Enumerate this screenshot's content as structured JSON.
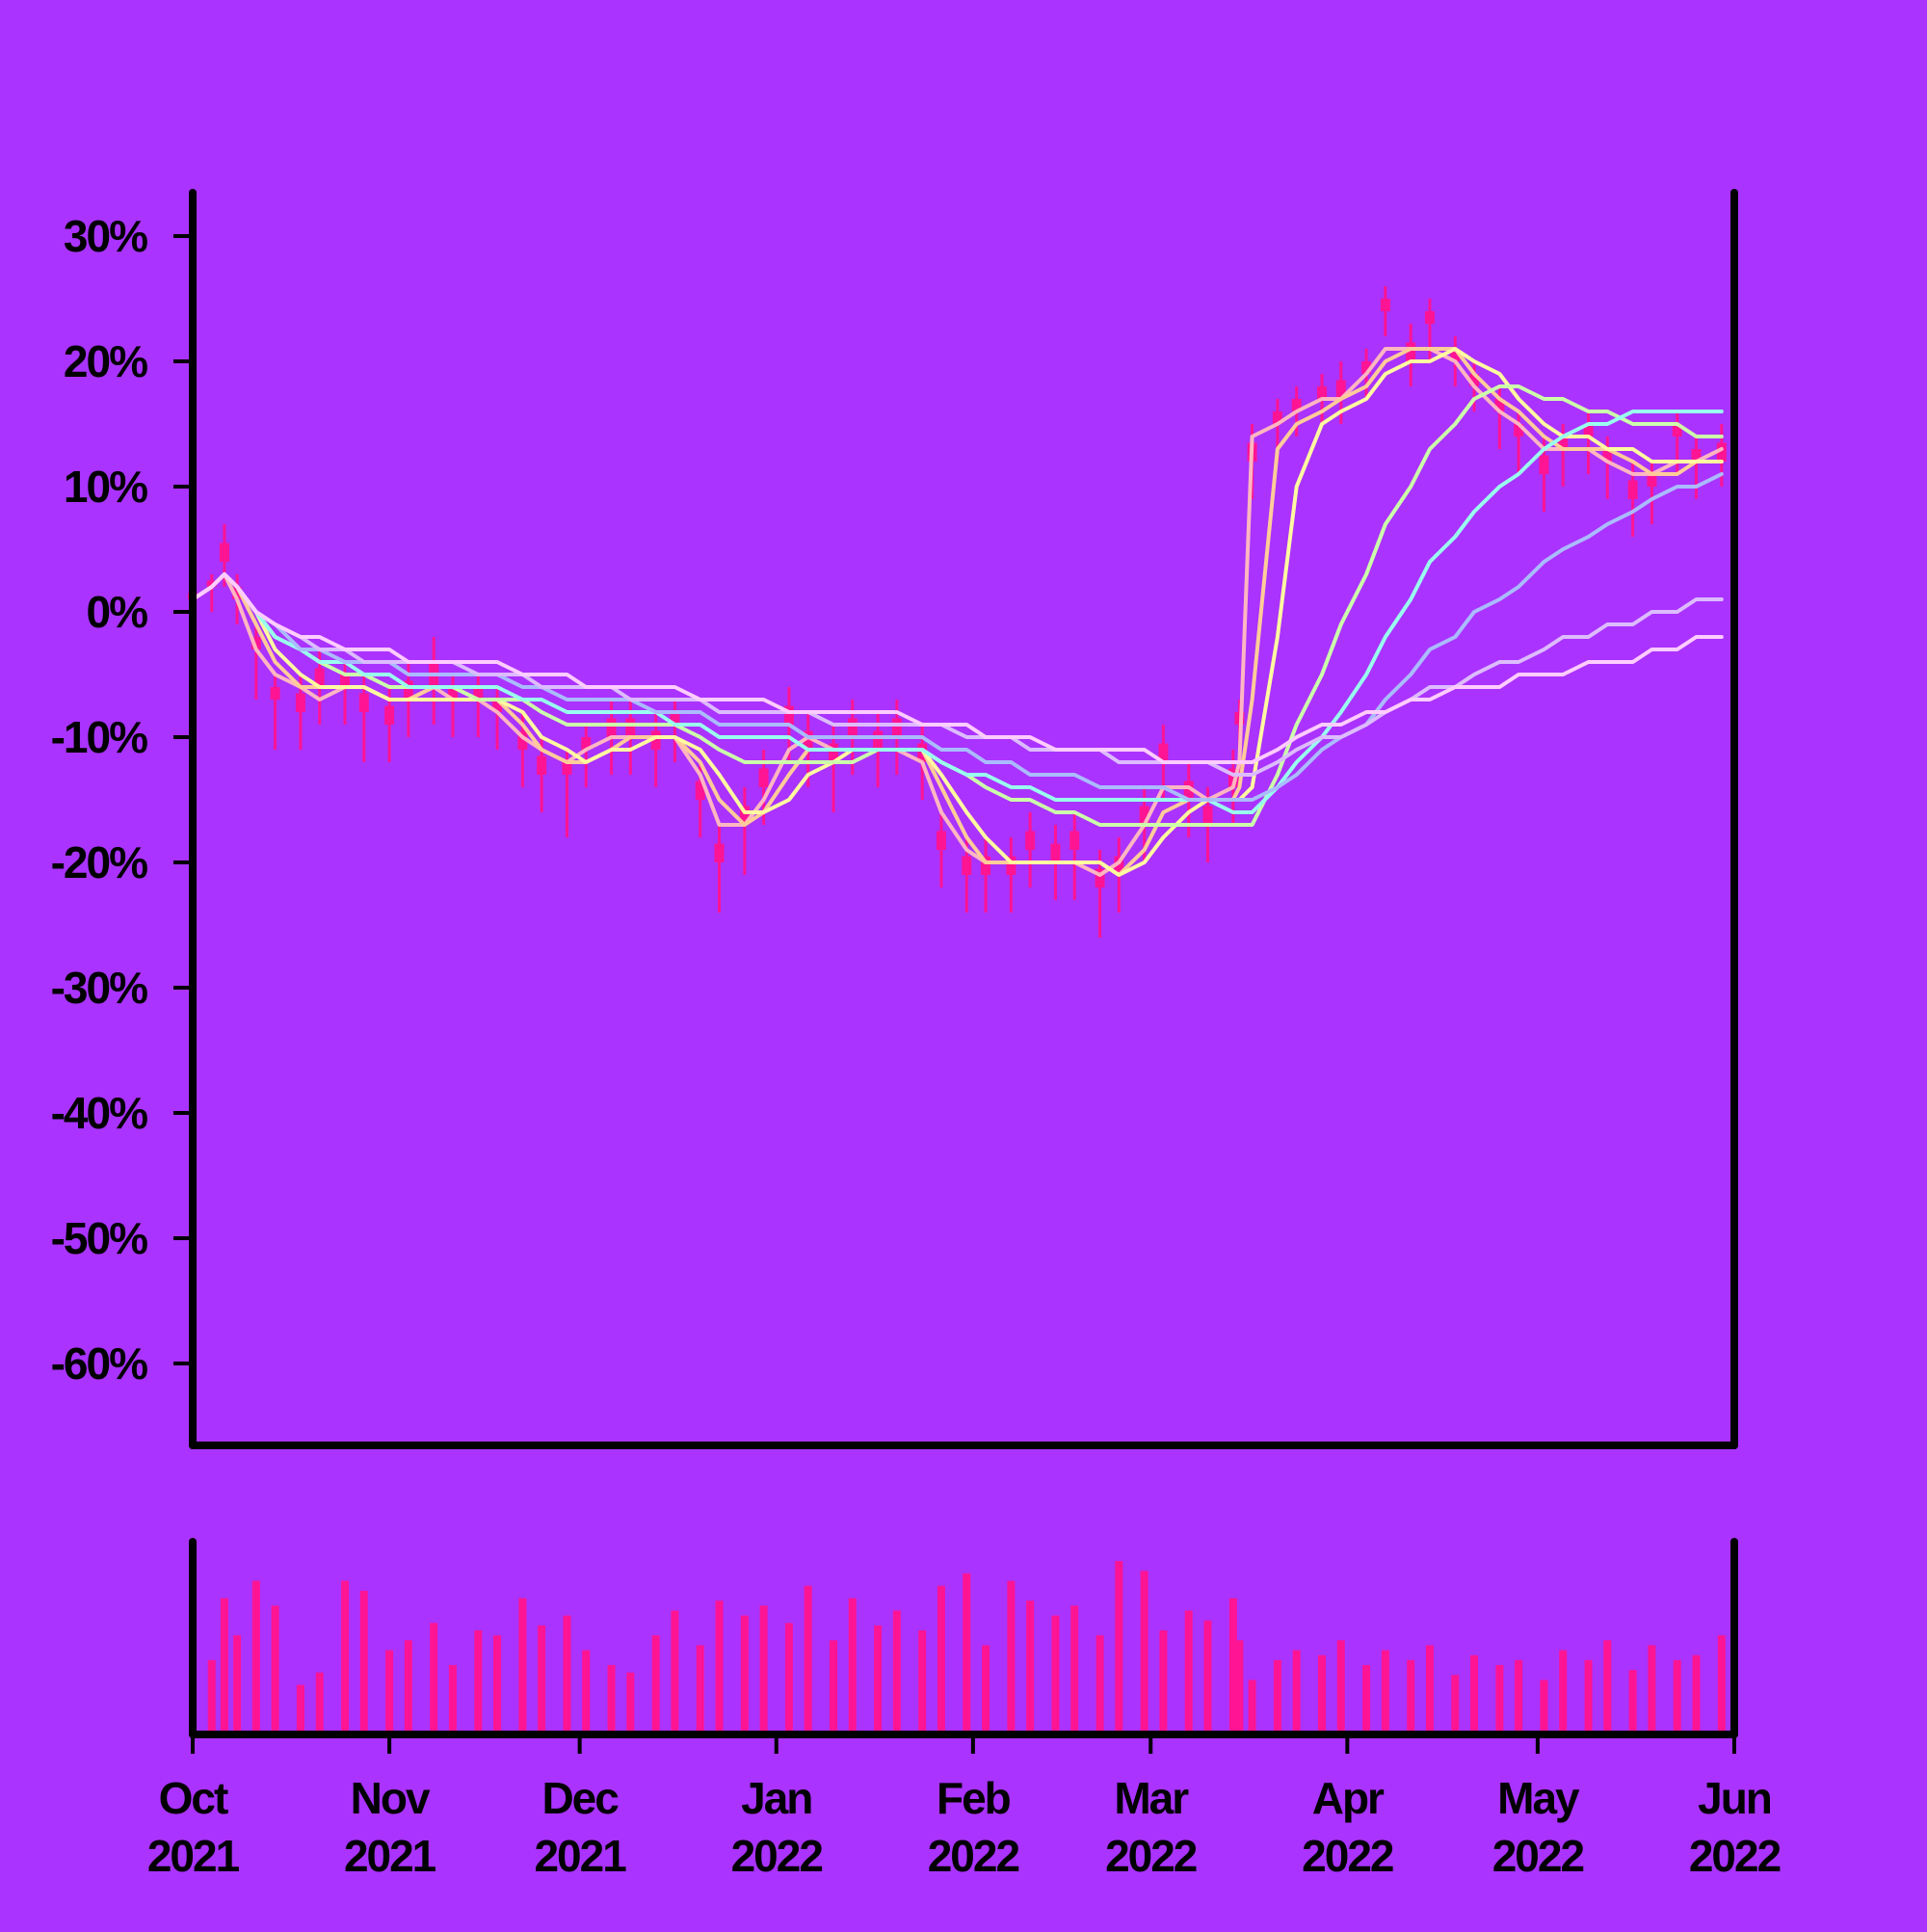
{
  "chart_data": {
    "type": "line",
    "background": "#aa33ff",
    "price_color": "#ff1493",
    "volume_color": "#ff1493",
    "axis_color": "#000000",
    "x_range": [
      "2021-10-01",
      "2022-06-01"
    ],
    "x_ticks": [
      {
        "date": "2021-10-01",
        "month": "Oct",
        "year": "2021"
      },
      {
        "date": "2021-11-01",
        "month": "Nov",
        "year": "2021"
      },
      {
        "date": "2021-12-01",
        "month": "Dec",
        "year": "2021"
      },
      {
        "date": "2022-01-01",
        "month": "Jan",
        "year": "2022"
      },
      {
        "date": "2022-02-01",
        "month": "Feb",
        "year": "2022"
      },
      {
        "date": "2022-03-01",
        "month": "Mar",
        "year": "2022"
      },
      {
        "date": "2022-04-01",
        "month": "Apr",
        "year": "2022"
      },
      {
        "date": "2022-05-01",
        "month": "May",
        "year": "2022"
      },
      {
        "date": "2022-06-01",
        "month": "Jun",
        "year": "2022"
      }
    ],
    "y_range": [
      -66,
      33
    ],
    "y_unit": "%",
    "y_ticks": [
      30,
      20,
      10,
      0,
      -10,
      -20,
      -30,
      -40,
      -50,
      -60
    ],
    "y_tick_labels": [
      "30%",
      "20%",
      "10%",
      "0%",
      "-10%",
      "-20%",
      "-30%",
      "-40%",
      "-50%",
      "-60%"
    ],
    "grid": false,
    "price_series": {
      "dates": [
        "2021-10-01",
        "2021-10-04",
        "2021-10-06",
        "2021-10-08",
        "2021-10-11",
        "2021-10-14",
        "2021-10-18",
        "2021-10-21",
        "2021-10-25",
        "2021-10-28",
        "2021-11-01",
        "2021-11-04",
        "2021-11-08",
        "2021-11-11",
        "2021-11-15",
        "2021-11-18",
        "2021-11-22",
        "2021-11-25",
        "2021-11-29",
        "2021-12-02",
        "2021-12-06",
        "2021-12-09",
        "2021-12-13",
        "2021-12-16",
        "2021-12-20",
        "2021-12-23",
        "2021-12-27",
        "2021-12-30",
        "2022-01-03",
        "2022-01-06",
        "2022-01-10",
        "2022-01-13",
        "2022-01-17",
        "2022-01-20",
        "2022-01-24",
        "2022-01-27",
        "2022-01-31",
        "2022-02-03",
        "2022-02-07",
        "2022-02-10",
        "2022-02-14",
        "2022-02-17",
        "2022-02-21",
        "2022-02-24",
        "2022-02-28",
        "2022-03-03",
        "2022-03-07",
        "2022-03-10",
        "2022-03-14",
        "2022-03-15",
        "2022-03-17",
        "2022-03-21",
        "2022-03-24",
        "2022-03-28",
        "2022-03-31",
        "2022-04-04",
        "2022-04-07",
        "2022-04-11",
        "2022-04-14",
        "2022-04-18",
        "2022-04-21",
        "2022-04-25",
        "2022-04-28",
        "2022-05-02",
        "2022-05-05",
        "2022-05-09",
        "2022-05-12",
        "2022-05-16",
        "2022-05-19",
        "2022-05-23",
        "2022-05-26",
        "2022-05-30"
      ],
      "values": [
        1,
        2,
        4,
        1,
        -3,
        -7,
        -8,
        -6,
        -6,
        -8,
        -9,
        -7,
        -6,
        -7,
        -7,
        -8,
        -11,
        -13,
        -13,
        -11,
        -10,
        -10,
        -11,
        -9,
        -15,
        -20,
        -17,
        -14,
        -9,
        -11,
        -12,
        -10,
        -11,
        -10,
        -12,
        -19,
        -21,
        -21,
        -21,
        -19,
        -20,
        -19,
        -22,
        -21,
        -17,
        -12,
        -15,
        -17,
        -14,
        -9,
        12,
        15,
        16,
        17,
        17,
        19,
        24,
        20,
        23,
        20,
        18,
        16,
        14,
        11,
        13,
        14,
        12,
        9,
        10,
        14,
        12,
        12
      ],
      "highs": [
        2,
        3,
        7,
        3,
        -1,
        -5,
        -5,
        -3,
        -4,
        -5,
        -6,
        -4,
        -2,
        -5,
        -5,
        -6,
        -8,
        -10,
        -11,
        -9,
        -7,
        -7,
        -8,
        -7,
        -12,
        -17,
        -14,
        -11,
        -6,
        -8,
        -9,
        -7,
        -8,
        -7,
        -9,
        -16,
        -18,
        -18,
        -18,
        -16,
        -17,
        -16,
        -19,
        -18,
        -14,
        -9,
        -12,
        -14,
        -11,
        -7,
        15,
        17,
        18,
        19,
        20,
        21,
        26,
        23,
        25,
        22,
        20,
        18,
        16,
        14,
        15,
        16,
        14,
        12,
        12,
        16,
        14,
        15
      ],
      "lows": [
        0,
        0,
        2,
        -1,
        -7,
        -11,
        -11,
        -9,
        -9,
        -12,
        -12,
        -10,
        -9,
        -10,
        -10,
        -11,
        -14,
        -16,
        -18,
        -14,
        -13,
        -13,
        -14,
        -12,
        -18,
        -24,
        -21,
        -17,
        -12,
        -14,
        -16,
        -13,
        -14,
        -13,
        -15,
        -22,
        -24,
        -24,
        -24,
        -22,
        -23,
        -23,
        -26,
        -24,
        -20,
        -15,
        -18,
        -20,
        -17,
        -14,
        9,
        12,
        14,
        15,
        15,
        17,
        22,
        18,
        20,
        18,
        16,
        13,
        11,
        8,
        10,
        11,
        9,
        6,
        7,
        11,
        9,
        10
      ]
    },
    "volume_series": [
      48,
      30,
      55,
      40,
      62,
      52,
      20,
      25,
      62,
      58,
      34,
      38,
      45,
      28,
      42,
      40,
      55,
      44,
      48,
      34,
      28,
      25,
      40,
      50,
      36,
      54,
      48,
      52,
      45,
      60,
      38,
      55,
      44,
      50,
      42,
      60,
      65,
      36,
      62,
      54,
      48,
      52,
      40,
      70,
      66,
      42,
      50,
      46,
      55,
      38,
      22,
      30,
      34,
      32,
      38,
      28,
      34,
      30,
      36,
      24,
      32,
      28,
      30,
      22,
      34,
      30,
      38,
      26,
      36,
      30,
      32,
      40
    ],
    "series": [
      {
        "values": [
          1,
          2,
          3,
          1,
          -3,
          -5,
          -6,
          -7,
          -6,
          -6,
          -7,
          -7,
          -6,
          -7,
          -7,
          -8,
          -10,
          -11,
          -12,
          -11,
          -10,
          -10,
          -10,
          -10,
          -13,
          -17,
          -17,
          -15,
          -11,
          -10,
          -11,
          -11,
          -11,
          -11,
          -12,
          -16,
          -19,
          -20,
          -20,
          -20,
          -20,
          -20,
          -21,
          -20,
          -17,
          -14,
          -14,
          -15,
          -14,
          -12,
          14,
          15,
          16,
          17,
          17,
          19,
          21,
          21,
          21,
          20,
          18,
          16,
          15,
          13,
          13,
          13,
          12,
          11,
          11,
          12,
          12,
          13
        ],
        "color": "#ffb6c1"
      },
      {
        "values": [
          1,
          2,
          3,
          2,
          -1,
          -4,
          -6,
          -6,
          -6,
          -6,
          -7,
          -7,
          -6,
          -6,
          -7,
          -7,
          -9,
          -11,
          -12,
          -12,
          -11,
          -10,
          -10,
          -10,
          -12,
          -15,
          -17,
          -16,
          -13,
          -11,
          -11,
          -11,
          -11,
          -11,
          -11,
          -14,
          -18,
          -20,
          -20,
          -20,
          -20,
          -20,
          -20,
          -21,
          -19,
          -16,
          -15,
          -15,
          -15,
          -14,
          -7,
          13,
          15,
          16,
          17,
          18,
          20,
          21,
          21,
          21,
          19,
          17,
          16,
          14,
          13,
          13,
          13,
          12,
          11,
          11,
          12,
          12
        ],
        "color": "#ffcc99"
      },
      {
        "values": [
          1,
          2,
          3,
          2,
          0,
          -3,
          -5,
          -6,
          -6,
          -6,
          -7,
          -7,
          -7,
          -7,
          -7,
          -7,
          -8,
          -10,
          -11,
          -12,
          -11,
          -11,
          -10,
          -10,
          -11,
          -13,
          -16,
          -16,
          -15,
          -13,
          -12,
          -11,
          -11,
          -11,
          -11,
          -13,
          -16,
          -18,
          -20,
          -20,
          -20,
          -20,
          -20,
          -21,
          -20,
          -18,
          -16,
          -15,
          -15,
          -15,
          -14,
          -2,
          10,
          15,
          16,
          17,
          19,
          20,
          20,
          21,
          20,
          19,
          17,
          15,
          14,
          14,
          13,
          13,
          12,
          12,
          12,
          12
        ],
        "color": "#fffaa0"
      },
      {
        "values": [
          1,
          2,
          3,
          2,
          0,
          -2,
          -3,
          -4,
          -5,
          -5,
          -6,
          -6,
          -6,
          -6,
          -7,
          -7,
          -7,
          -8,
          -9,
          -9,
          -9,
          -9,
          -9,
          -9,
          -10,
          -11,
          -12,
          -12,
          -12,
          -12,
          -12,
          -12,
          -11,
          -11,
          -11,
          -12,
          -13,
          -14,
          -15,
          -15,
          -16,
          -16,
          -17,
          -17,
          -17,
          -17,
          -17,
          -17,
          -17,
          -17,
          -17,
          -13,
          -9,
          -5,
          -1,
          3,
          7,
          10,
          13,
          15,
          17,
          18,
          18,
          17,
          17,
          16,
          16,
          15,
          15,
          15,
          14,
          14
        ],
        "color": "#ccffaa"
      },
      {
        "values": [
          1,
          2,
          3,
          2,
          0,
          -2,
          -3,
          -4,
          -4,
          -5,
          -5,
          -6,
          -6,
          -6,
          -6,
          -6,
          -7,
          -7,
          -8,
          -8,
          -8,
          -8,
          -8,
          -9,
          -9,
          -10,
          -10,
          -10,
          -10,
          -11,
          -11,
          -11,
          -11,
          -11,
          -11,
          -12,
          -13,
          -13,
          -14,
          -14,
          -15,
          -15,
          -15,
          -15,
          -15,
          -15,
          -15,
          -15,
          -16,
          -16,
          -16,
          -14,
          -12,
          -10,
          -8,
          -5,
          -2,
          1,
          4,
          6,
          8,
          10,
          11,
          13,
          14,
          15,
          15,
          16,
          16,
          16,
          16,
          16
        ],
        "color": "#99ffee"
      },
      {
        "values": [
          1,
          2,
          3,
          2,
          0,
          -1,
          -3,
          -3,
          -4,
          -4,
          -4,
          -5,
          -5,
          -5,
          -5,
          -5,
          -6,
          -6,
          -7,
          -7,
          -7,
          -7,
          -8,
          -8,
          -8,
          -9,
          -9,
          -9,
          -9,
          -10,
          -10,
          -10,
          -10,
          -10,
          -10,
          -11,
          -11,
          -12,
          -12,
          -13,
          -13,
          -13,
          -14,
          -14,
          -14,
          -14,
          -15,
          -15,
          -15,
          -15,
          -15,
          -14,
          -13,
          -11,
          -10,
          -9,
          -7,
          -5,
          -3,
          -2,
          0,
          1,
          2,
          4,
          5,
          6,
          7,
          8,
          9,
          10,
          10,
          11
        ],
        "color": "#aabbff"
      },
      {
        "values": [
          1,
          2,
          3,
          2,
          0,
          -1,
          -2,
          -3,
          -3,
          -4,
          -4,
          -4,
          -4,
          -4,
          -5,
          -5,
          -5,
          -6,
          -6,
          -6,
          -6,
          -7,
          -7,
          -7,
          -7,
          -8,
          -8,
          -8,
          -8,
          -8,
          -9,
          -9,
          -9,
          -9,
          -9,
          -9,
          -10,
          -10,
          -10,
          -11,
          -11,
          -11,
          -11,
          -12,
          -12,
          -12,
          -12,
          -12,
          -13,
          -13,
          -13,
          -12,
          -11,
          -10,
          -10,
          -9,
          -8,
          -7,
          -6,
          -6,
          -5,
          -4,
          -4,
          -3,
          -2,
          -2,
          -1,
          -1,
          0,
          0,
          1,
          1
        ],
        "color": "#ddbbff"
      },
      {
        "values": [
          1,
          2,
          3,
          2,
          0,
          -1,
          -2,
          -2,
          -3,
          -3,
          -3,
          -4,
          -4,
          -4,
          -4,
          -4,
          -5,
          -5,
          -5,
          -6,
          -6,
          -6,
          -6,
          -6,
          -7,
          -7,
          -7,
          -7,
          -8,
          -8,
          -8,
          -8,
          -8,
          -8,
          -9,
          -9,
          -9,
          -10,
          -10,
          -10,
          -11,
          -11,
          -11,
          -11,
          -11,
          -12,
          -12,
          -12,
          -12,
          -12,
          -12,
          -11,
          -10,
          -9,
          -9,
          -8,
          -8,
          -7,
          -7,
          -6,
          -6,
          -6,
          -5,
          -5,
          -5,
          -4,
          -4,
          -4,
          -3,
          -3,
          -2,
          -2
        ],
        "color": "#ffccff"
      }
    ]
  }
}
